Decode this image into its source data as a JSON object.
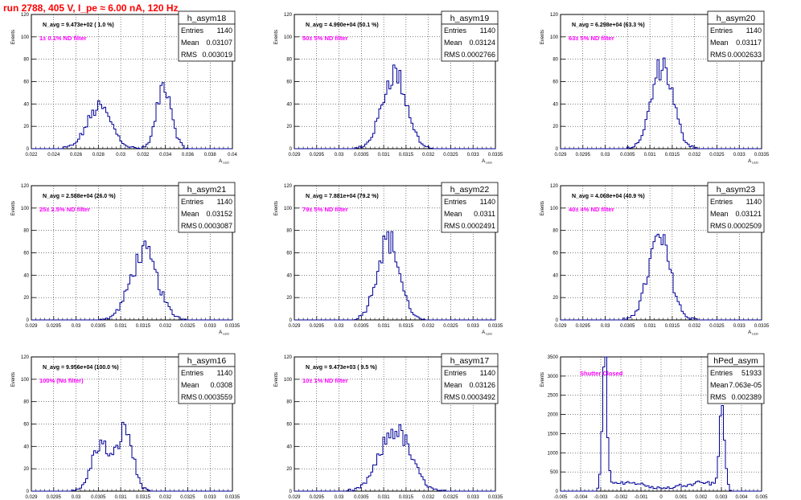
{
  "page_title": "run 2788,   405 V, I_pe ≈ 6.00 nA, 120 Hz",
  "colors": {
    "histogram": "#000099",
    "filter_label": "#ff00ff",
    "title": "#ff0000",
    "grid": "#000000"
  },
  "stats_labels": {
    "entries": "Entries",
    "mean": "Mean",
    "rms": "RMS"
  },
  "chart_data": [
    {
      "type": "histogram",
      "title": "h_asym18",
      "navg": "N_avg = 9.473e+02 ( 1.0 %)",
      "filter": "1± 0.1% ND filter",
      "stats": {
        "entries": "1140",
        "mean": "0.03107",
        "rms": "0.003019"
      },
      "ylabel": "Events",
      "xlabel": "A_LED",
      "grid": true,
      "xlim": [
        0.022,
        0.04
      ],
      "ylim": [
        0,
        120
      ],
      "xticks": [
        0.022,
        0.024,
        0.026,
        0.028,
        0.03,
        0.032,
        0.034,
        0.036,
        0.038,
        0.04
      ],
      "xticklabels": [
        "0.022",
        "0.024",
        "0.026",
        "0.028",
        "0.03",
        "0.032",
        "0.034",
        "0.036",
        "0.038",
        "0.04"
      ],
      "yticks": [
        0,
        20,
        40,
        60,
        80,
        100,
        120
      ],
      "peaks": [
        {
          "center": 0.0281,
          "sigma": 0.0011,
          "height": 37
        },
        {
          "center": 0.0339,
          "sigma": 0.00065,
          "height": 58
        }
      ]
    },
    {
      "type": "histogram",
      "title": "h_asym19",
      "navg": "N_avg = 4.990e+04 (50.1 %)",
      "filter": "50± 5% ND filter",
      "stats": {
        "entries": "1140",
        "mean": "0.03124",
        "rms": "0.0002766"
      },
      "ylabel": "Events",
      "xlabel": "A_LED",
      "grid": true,
      "xlim": [
        0.029,
        0.0335
      ],
      "ylim": [
        0,
        120
      ],
      "xticks": [
        0.029,
        0.0295,
        0.03,
        0.0305,
        0.031,
        0.0315,
        0.032,
        0.0325,
        0.033,
        0.0335
      ],
      "xticklabels": [
        "0.029",
        "0.0295",
        "0.03",
        "0.0305",
        "0.031",
        "0.0315",
        "0.032",
        "0.0325",
        "0.033",
        "0.0335"
      ],
      "yticks": [
        0,
        20,
        40,
        60,
        80,
        100,
        120
      ],
      "peaks": [
        {
          "center": 0.03124,
          "sigma": 0.00027,
          "height": 68
        }
      ]
    },
    {
      "type": "histogram",
      "title": "h_asym20",
      "navg": "N_avg = 6.298e+04 (63.3 %)",
      "filter": "63± 5% ND filter",
      "stats": {
        "entries": "1140",
        "mean": "0.03117",
        "rms": "0.0002633"
      },
      "ylabel": "Events",
      "xlabel": "A_LED",
      "grid": true,
      "xlim": [
        0.029,
        0.0335
      ],
      "ylim": [
        0,
        120
      ],
      "xticks": [
        0.029,
        0.0295,
        0.03,
        0.0305,
        0.031,
        0.0315,
        0.032,
        0.0325,
        0.033,
        0.0335
      ],
      "xticklabels": [
        "0.029",
        "0.0295",
        "0.03",
        "0.0305",
        "0.031",
        "0.0315",
        "0.032",
        "0.0325",
        "0.033",
        "0.0335"
      ],
      "yticks": [
        0,
        20,
        40,
        60,
        80,
        100,
        120
      ],
      "peaks": [
        {
          "center": 0.03128,
          "sigma": 0.00024,
          "height": 75
        }
      ]
    },
    {
      "type": "histogram",
      "title": "h_asym21",
      "navg": "N_avg = 2.588e+04 (26.0 %)",
      "filter": "25± 2.5% ND filter",
      "stats": {
        "entries": "1140",
        "mean": "0.03152",
        "rms": "0.0003087"
      },
      "ylabel": "Events",
      "xlabel": "A_LED",
      "grid": true,
      "xlim": [
        0.029,
        0.0335
      ],
      "ylim": [
        0,
        120
      ],
      "xticks": [
        0.029,
        0.0295,
        0.03,
        0.0305,
        0.031,
        0.0315,
        0.032,
        0.0325,
        0.033,
        0.0335
      ],
      "xticklabels": [
        "0.029",
        "0.0295",
        "0.03",
        "0.0305",
        "0.031",
        "0.0315",
        "0.032",
        "0.0325",
        "0.033",
        "0.0335"
      ],
      "yticks": [
        0,
        20,
        40,
        60,
        80,
        100,
        120
      ],
      "peaks": [
        {
          "center": 0.03152,
          "sigma": 0.0003,
          "height": 60
        }
      ]
    },
    {
      "type": "histogram",
      "title": "h_asym22",
      "navg": "N_avg = 7.881e+04 (79.2 %)",
      "filter": "79± 5% ND filter",
      "stats": {
        "entries": "1140",
        "mean": "0.0311",
        "rms": "0.0002491"
      },
      "ylabel": "Events",
      "xlabel": "A_LED",
      "grid": true,
      "xlim": [
        0.029,
        0.0335
      ],
      "ylim": [
        0,
        120
      ],
      "xticks": [
        0.029,
        0.0295,
        0.03,
        0.0305,
        0.031,
        0.0315,
        0.032,
        0.0325,
        0.033,
        0.0335
      ],
      "xticklabels": [
        "0.029",
        "0.0295",
        "0.03",
        "0.0305",
        "0.031",
        "0.0315",
        "0.032",
        "0.0325",
        "0.033",
        "0.0335"
      ],
      "yticks": [
        0,
        20,
        40,
        60,
        80,
        100,
        120
      ],
      "peaks": [
        {
          "center": 0.0311,
          "sigma": 0.00025,
          "height": 72
        }
      ]
    },
    {
      "type": "histogram",
      "title": "h_asym23",
      "navg": "N_avg = 4.068e+04 (40.9 %)",
      "filter": "40± 4% ND filter",
      "stats": {
        "entries": "1140",
        "mean": "0.03121",
        "rms": "0.0002509"
      },
      "ylabel": "Events",
      "xlabel": "A_LED",
      "grid": true,
      "xlim": [
        0.029,
        0.0335
      ],
      "ylim": [
        0,
        120
      ],
      "xticks": [
        0.029,
        0.0295,
        0.03,
        0.0305,
        0.031,
        0.0315,
        0.032,
        0.0325,
        0.033,
        0.0335
      ],
      "xticklabels": [
        "0.029",
        "0.0295",
        "0.03",
        "0.0305",
        "0.031",
        "0.0315",
        "0.032",
        "0.0325",
        "0.033",
        "0.0335"
      ],
      "yticks": [
        0,
        20,
        40,
        60,
        80,
        100,
        120
      ],
      "peaks": [
        {
          "center": 0.03121,
          "sigma": 0.00025,
          "height": 72
        }
      ]
    },
    {
      "type": "histogram",
      "title": "h_asym16",
      "navg": "N_avg = 9.956e+04 (100.0 %)",
      "filter": "100% (No filter)",
      "stats": {
        "entries": "1140",
        "mean": "0.0308",
        "rms": "0.0003559"
      },
      "ylabel": "Events",
      "xlabel": "A_LED",
      "grid": true,
      "xlim": [
        0.029,
        0.0335
      ],
      "ylim": [
        0,
        120
      ],
      "xticks": [
        0.029,
        0.0295,
        0.03,
        0.0305,
        0.031,
        0.0315,
        0.032,
        0.0325,
        0.033,
        0.0335
      ],
      "xticklabels": [
        "0.029",
        "0.0295",
        "0.03",
        "0.0305",
        "0.031",
        "0.0315",
        "0.032",
        "0.0325",
        "0.033",
        "0.0335"
      ],
      "yticks": [
        0,
        20,
        40,
        60,
        80,
        100,
        120
      ],
      "peaks": [
        {
          "center": 0.03055,
          "sigma": 0.0002,
          "height": 42
        },
        {
          "center": 0.0311,
          "sigma": 0.00017,
          "height": 55
        }
      ]
    },
    {
      "type": "histogram",
      "title": "h_asym17",
      "navg": "N_avg = 9.473e+03 ( 9.5 %)",
      "filter": "10± 1% ND filter",
      "stats": {
        "entries": "1140",
        "mean": "0.03126",
        "rms": "0.0003492"
      },
      "ylabel": "Events",
      "xlabel": "A_LED",
      "grid": true,
      "xlim": [
        0.029,
        0.0335
      ],
      "ylim": [
        0,
        120
      ],
      "xticks": [
        0.029,
        0.0295,
        0.03,
        0.0305,
        0.031,
        0.0315,
        0.032,
        0.0325,
        0.033,
        0.0335
      ],
      "xticklabels": [
        "0.029",
        "0.0295",
        "0.03",
        "0.0305",
        "0.031",
        "0.0315",
        "0.032",
        "0.0325",
        "0.033",
        "0.0335"
      ],
      "yticks": [
        0,
        20,
        40,
        60,
        80,
        100,
        120
      ],
      "peaks": [
        {
          "center": 0.03126,
          "sigma": 0.00034,
          "height": 55
        }
      ]
    },
    {
      "type": "histogram",
      "title": "hPed_asym",
      "navg": "",
      "filter": "Shutter Closed",
      "stats": {
        "entries": "51933",
        "mean": "7.063e-05",
        "rms": "0.002389"
      },
      "ylabel": "Events",
      "xlabel": "",
      "grid": true,
      "xlim": [
        -0.005,
        0.005
      ],
      "ylim": [
        0,
        3500
      ],
      "xticks": [
        -0.005,
        -0.004,
        -0.003,
        -0.002,
        -0.001,
        0,
        0.001,
        0.002,
        0.003,
        0.004,
        0.005
      ],
      "xticklabels": [
        "-0.005",
        "-0.004",
        "-0.003",
        "-0.002",
        "-0.001",
        "0",
        "0.001",
        "0.002",
        "0.003",
        "0.004",
        "0.005"
      ],
      "yticks": [
        0,
        500,
        1000,
        1500,
        2000,
        2500,
        3000,
        3500
      ],
      "peaks": [
        {
          "center": -0.0028,
          "sigma": 0.00012,
          "height": 3300
        },
        {
          "center": 0.00305,
          "sigma": 0.00013,
          "height": 2050
        }
      ],
      "baseline": 200
    }
  ]
}
